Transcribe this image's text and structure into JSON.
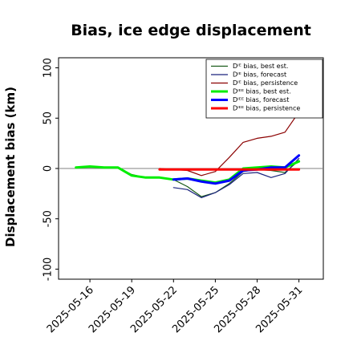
{
  "chart_data": {
    "type": "line",
    "title": "Bias, ice edge displacement",
    "xlabel": "",
    "ylabel": "Displacement bias (km)",
    "ylim": [
      -110,
      110
    ],
    "xlim": [
      "2025-05-13T18:00",
      "2025-06-01T18:00"
    ],
    "yticks": [
      -100,
      -50,
      0,
      50,
      100
    ],
    "xticks": [
      "2025-05-16",
      "2025-05-19",
      "2025-05-22",
      "2025-05-25",
      "2025-05-28",
      "2025-05-31"
    ],
    "highlighted_xtick": "2025-05-22",
    "highlight_color": "#228b22",
    "zero_line": true,
    "grid": false,
    "legend_position": "upper right",
    "series": [
      {
        "name": "Dᴵᴱ bias, best est.",
        "color": "#1a5c1a",
        "width": 1.2,
        "x": [
          "2025-05-15",
          "2025-05-16",
          "2025-05-17",
          "2025-05-18",
          "2025-05-19",
          "2025-05-20",
          "2025-05-21",
          "2025-05-22",
          "2025-05-23",
          "2025-05-24",
          "2025-05-25",
          "2025-05-26",
          "2025-05-27",
          "2025-05-28",
          "2025-05-29",
          "2025-05-30",
          "2025-05-31"
        ],
        "values": [
          1,
          1,
          1,
          1,
          -6,
          -9,
          -9,
          -11,
          -18,
          -28,
          -24,
          -15,
          -3,
          -1,
          -2,
          -4,
          8
        ]
      },
      {
        "name": "Dᴵᴱ bias, forecast",
        "color": "#1a237e",
        "width": 1.2,
        "x": [
          "2025-05-22",
          "2025-05-23",
          "2025-05-24",
          "2025-05-25",
          "2025-05-26",
          "2025-05-27",
          "2025-05-28",
          "2025-05-29",
          "2025-05-30",
          "2025-05-31"
        ],
        "values": [
          -19,
          -21,
          -29,
          -24,
          -16,
          -5,
          -4,
          -9,
          -5,
          10
        ]
      },
      {
        "name": "Dᴵᴱ bias, persistence",
        "color": "#8b0000",
        "width": 1.2,
        "x": [
          "2025-05-21",
          "2025-05-22",
          "2025-05-23",
          "2025-05-24",
          "2025-05-25",
          "2025-05-26",
          "2025-05-27",
          "2025-05-28",
          "2025-05-29",
          "2025-05-30",
          "2025-05-31"
        ],
        "values": [
          0,
          -1,
          -2,
          -7,
          -3,
          11,
          26,
          30,
          32,
          36,
          56
        ]
      },
      {
        "name": "Dᴵᴱᴱ bias, best est.",
        "color": "#00ee00",
        "width": 3,
        "x": [
          "2025-05-15",
          "2025-05-16",
          "2025-05-17",
          "2025-05-18",
          "2025-05-19",
          "2025-05-20",
          "2025-05-21",
          "2025-05-22",
          "2025-05-23",
          "2025-05-24",
          "2025-05-25",
          "2025-05-26",
          "2025-05-27",
          "2025-05-28",
          "2025-05-29",
          "2025-05-30",
          "2025-05-31"
        ],
        "values": [
          1,
          2,
          1,
          1,
          -7,
          -9,
          -9,
          -11,
          -10,
          -12,
          -14,
          -11,
          0,
          1,
          2,
          1,
          7
        ]
      },
      {
        "name": "Dᴵᴱᴱ bias, forecast",
        "color": "#0000ff",
        "width": 3,
        "x": [
          "2025-05-22",
          "2025-05-23",
          "2025-05-24",
          "2025-05-25",
          "2025-05-26",
          "2025-05-27",
          "2025-05-28",
          "2025-05-29",
          "2025-05-30",
          "2025-05-31"
        ],
        "values": [
          -11,
          -10,
          -13,
          -15,
          -12,
          -2,
          -1,
          1,
          1,
          13
        ]
      },
      {
        "name": "Dᴵᴱᴱ bias, persistence",
        "color": "#ff0000",
        "width": 3,
        "x": [
          "2025-05-21",
          "2025-05-22",
          "2025-05-23",
          "2025-05-24",
          "2025-05-25",
          "2025-05-26",
          "2025-05-27",
          "2025-05-28",
          "2025-05-29",
          "2025-05-30",
          "2025-05-31"
        ],
        "values": [
          -1,
          -1,
          -1,
          -1,
          -1,
          -1,
          -1,
          -1,
          -1,
          -1,
          -1
        ]
      }
    ]
  }
}
